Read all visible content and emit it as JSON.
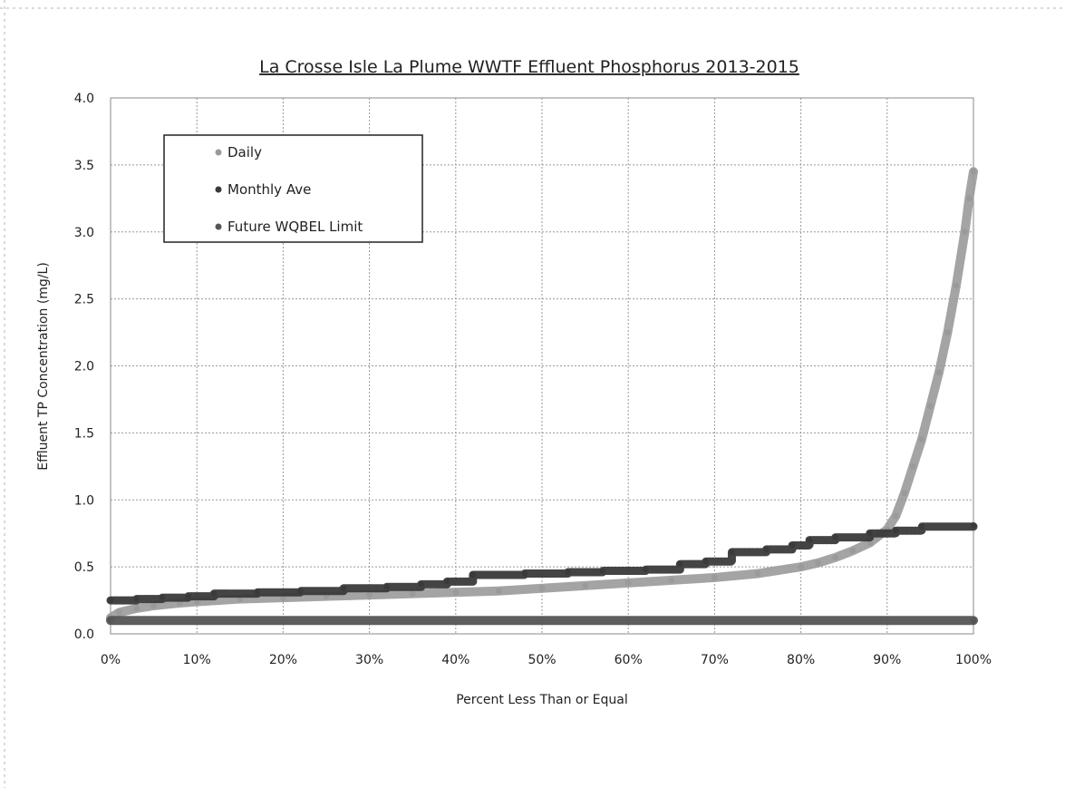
{
  "chart_data": {
    "type": "scatter",
    "title": "La Crosse Isle La Plume WWTF Effluent Phosphorus 2013-2015",
    "xlabel": "Percent Less Than or Equal",
    "ylabel": "Effluent TP Concentration (mg/L)",
    "xlim": [
      0,
      100
    ],
    "ylim": [
      0,
      4.0
    ],
    "x_ticks": [
      0,
      10,
      20,
      30,
      40,
      50,
      60,
      70,
      80,
      90,
      100
    ],
    "x_tick_labels": [
      "0%",
      "10%",
      "20%",
      "30%",
      "40%",
      "50%",
      "60%",
      "70%",
      "80%",
      "90%",
      "100%"
    ],
    "y_ticks": [
      0,
      0.5,
      1.0,
      1.5,
      2.0,
      2.5,
      3.0,
      3.5,
      4.0
    ],
    "y_tick_labels": [
      "0.0",
      "0.5",
      "1.0",
      "1.5",
      "2.0",
      "2.5",
      "3.0",
      "3.5",
      "4.0"
    ],
    "grid": true,
    "legend_position": "top-left",
    "series": [
      {
        "name": "Daily",
        "color": "#9a9a9a",
        "x": [
          0,
          1,
          3,
          5,
          8,
          10,
          15,
          20,
          25,
          30,
          35,
          40,
          45,
          50,
          55,
          60,
          65,
          70,
          75,
          80,
          82,
          84,
          86,
          88,
          90,
          91,
          92,
          93,
          94,
          95,
          96,
          97,
          98,
          99,
          99.5,
          100
        ],
        "y": [
          0.12,
          0.16,
          0.19,
          0.21,
          0.23,
          0.24,
          0.26,
          0.27,
          0.28,
          0.29,
          0.3,
          0.31,
          0.32,
          0.34,
          0.36,
          0.38,
          0.4,
          0.42,
          0.45,
          0.5,
          0.53,
          0.57,
          0.62,
          0.68,
          0.78,
          0.88,
          1.05,
          1.25,
          1.45,
          1.7,
          1.95,
          2.25,
          2.6,
          3.0,
          3.25,
          3.45
        ]
      },
      {
        "name": "Monthly Ave",
        "color": "#3a3a3a",
        "x": [
          0,
          3,
          6,
          9,
          12,
          17,
          22,
          27,
          32,
          36,
          39,
          42,
          48,
          53,
          57,
          62,
          66,
          69,
          72,
          76,
          79,
          81,
          84,
          88,
          91,
          94,
          100
        ],
        "y": [
          0.25,
          0.26,
          0.27,
          0.28,
          0.3,
          0.31,
          0.32,
          0.34,
          0.35,
          0.37,
          0.39,
          0.44,
          0.45,
          0.46,
          0.47,
          0.48,
          0.52,
          0.54,
          0.61,
          0.63,
          0.66,
          0.7,
          0.72,
          0.75,
          0.77,
          0.8,
          0.81
        ]
      },
      {
        "name": "Future WQBEL Limit",
        "color": "#555555",
        "x": [
          0,
          100
        ],
        "y": [
          0.1,
          0.1
        ]
      }
    ]
  }
}
